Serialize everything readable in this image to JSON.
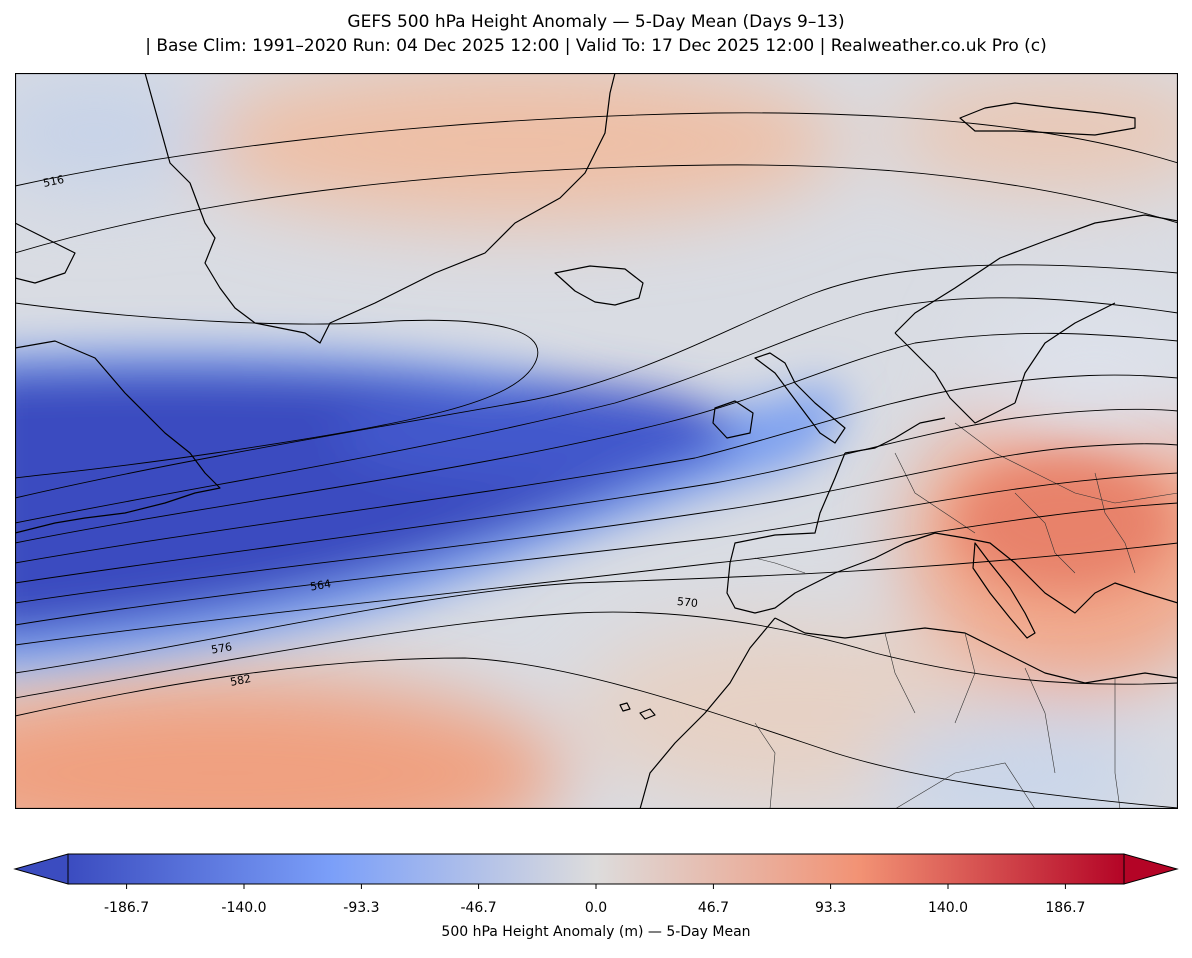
{
  "title": {
    "line1": "GEFS 500 hPa Height Anomaly — 5-Day Mean (Days 9–13)",
    "line2": "| Base Clim: 1991–2020 Run: 04 Dec 2025 12:00 | Valid To: 17 Dec 2025 12:00 | Realweather.co.uk Pro (c)"
  },
  "map": {
    "contour_labels": [
      "516",
      "564",
      "570",
      "576",
      "582"
    ]
  },
  "colorbar": {
    "label": "500 hPa Height Anomaly (m) — 5-Day Mean",
    "ticks": [
      "-186.7",
      "-140.0",
      "-93.3",
      "-46.7",
      "0.0",
      "46.7",
      "93.3",
      "140.0",
      "186.7"
    ],
    "range": [
      -210,
      210
    ],
    "extend": "both",
    "colormap": "coolwarm",
    "colors": {
      "min": "#3b4cc0",
      "mid": "#dddcdc",
      "max": "#b40426"
    }
  }
}
